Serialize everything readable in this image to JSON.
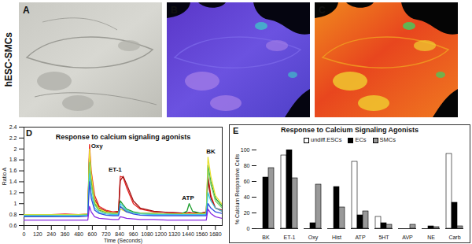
{
  "figure": {
    "row_label": "hESC-SMCs",
    "panels": [
      "A",
      "B",
      "C"
    ]
  },
  "chart_data": [
    {
      "panel": "D",
      "type": "line",
      "title": "Response to calcium signaling agonists",
      "x_label": "Time (Seconds)",
      "y_label": "Ratio A",
      "x": [
        0,
        120,
        240,
        360,
        480,
        560,
        575,
        590,
        620,
        660,
        720,
        780,
        830,
        845,
        870,
        900,
        960,
        1020,
        1140,
        1260,
        1380,
        1430,
        1450,
        1480,
        1560,
        1600,
        1615,
        1640,
        1680,
        1740
      ],
      "xlim": [
        0,
        1740
      ],
      "xticks": [
        0,
        120,
        240,
        360,
        480,
        600,
        720,
        840,
        960,
        1080,
        1200,
        1320,
        1440,
        1560,
        1680
      ],
      "ylim": [
        0.6,
        2.4
      ],
      "yticks": [
        0.6,
        0.8,
        1,
        1.2,
        1.4,
        1.6,
        1.8,
        2,
        2.2,
        2.4
      ],
      "grid": false,
      "series": [
        {
          "color": "#e8211f",
          "values": [
            0.8,
            0.8,
            0.8,
            0.81,
            0.8,
            0.81,
            2.08,
            1.6,
            1.15,
            0.95,
            0.88,
            0.85,
            0.86,
            1.5,
            1.48,
            1.3,
            1.0,
            0.9,
            0.85,
            0.84,
            0.83,
            0.83,
            0.84,
            0.83,
            0.83,
            0.85,
            1.5,
            1.15,
            0.92,
            0.86
          ]
        },
        {
          "color": "#a01010",
          "values": [
            0.78,
            0.78,
            0.78,
            0.79,
            0.78,
            0.79,
            1.92,
            1.5,
            1.08,
            0.92,
            0.86,
            0.83,
            0.85,
            1.42,
            1.5,
            1.36,
            1.05,
            0.92,
            0.86,
            0.84,
            0.83,
            0.83,
            0.83,
            0.83,
            0.83,
            0.84,
            1.45,
            1.1,
            0.92,
            0.88
          ]
        },
        {
          "color": "#1e9e2e",
          "values": [
            0.8,
            0.8,
            0.8,
            0.8,
            0.8,
            0.8,
            1.9,
            1.4,
            1.0,
            0.88,
            0.84,
            0.82,
            0.83,
            1.05,
            0.98,
            0.9,
            0.85,
            0.83,
            0.82,
            0.81,
            0.81,
            0.86,
            1.0,
            0.86,
            0.82,
            0.82,
            1.7,
            1.4,
            1.1,
            0.95
          ]
        },
        {
          "color": "#e8e030",
          "values": [
            0.8,
            0.8,
            0.8,
            0.8,
            0.8,
            0.81,
            2.0,
            1.55,
            1.05,
            0.9,
            0.85,
            0.83,
            0.83,
            0.9,
            0.88,
            0.85,
            0.83,
            0.82,
            0.82,
            0.81,
            0.81,
            0.81,
            0.81,
            0.81,
            0.81,
            0.82,
            1.85,
            1.5,
            1.15,
            0.98
          ]
        },
        {
          "color": "#7fd36a",
          "values": [
            0.79,
            0.79,
            0.79,
            0.79,
            0.79,
            0.8,
            1.75,
            1.35,
            0.98,
            0.87,
            0.83,
            0.82,
            0.82,
            0.95,
            0.92,
            0.87,
            0.84,
            0.82,
            0.81,
            0.81,
            0.8,
            0.8,
            0.8,
            0.8,
            0.8,
            0.81,
            1.65,
            1.35,
            1.05,
            0.92
          ]
        },
        {
          "color": "#3fc8e0",
          "values": [
            0.78,
            0.78,
            0.78,
            0.78,
            0.78,
            0.79,
            1.55,
            1.2,
            0.92,
            0.84,
            0.81,
            0.8,
            0.8,
            1.0,
            0.95,
            0.88,
            0.83,
            0.81,
            0.8,
            0.8,
            0.8,
            0.8,
            0.8,
            0.8,
            0.8,
            0.8,
            1.2,
            1.05,
            0.92,
            0.86
          ]
        },
        {
          "color": "#2f4fe0",
          "values": [
            0.76,
            0.76,
            0.76,
            0.76,
            0.76,
            0.77,
            1.4,
            1.1,
            0.88,
            0.82,
            0.79,
            0.78,
            0.78,
            0.95,
            0.9,
            0.85,
            0.81,
            0.79,
            0.78,
            0.78,
            0.78,
            0.78,
            0.78,
            0.78,
            0.78,
            0.78,
            1.0,
            0.92,
            0.85,
            0.82
          ]
        },
        {
          "color": "#8a2be2",
          "values": [
            0.7,
            0.7,
            0.7,
            0.7,
            0.7,
            0.7,
            0.95,
            0.85,
            0.76,
            0.73,
            0.72,
            0.71,
            0.71,
            0.76,
            0.75,
            0.73,
            0.72,
            0.71,
            0.71,
            0.7,
            0.7,
            0.7,
            0.7,
            0.7,
            0.7,
            0.7,
            0.9,
            0.82,
            0.76,
            0.73
          ]
        }
      ],
      "annotations": [
        {
          "text": "Oxy",
          "x": 640,
          "y": 2.05
        },
        {
          "text": "ET-1",
          "x": 800,
          "y": 1.62
        },
        {
          "text": "ATP",
          "x": 1440,
          "y": 1.1
        },
        {
          "text": "BK",
          "x": 1640,
          "y": 1.95
        }
      ]
    },
    {
      "panel": "E",
      "type": "bar",
      "title": "Response to Calcium Signaling Agonists",
      "y_label": "% Calcium Responsive Cells",
      "categories": [
        "BK",
        "ET-1",
        "Oxy",
        "Hist",
        "ATP",
        "5HT",
        "AVP",
        "NE",
        "Carb"
      ],
      "ylim": [
        0,
        100
      ],
      "yticks": [
        0,
        20,
        40,
        60,
        80,
        100
      ],
      "grid": false,
      "legend": "top",
      "series": [
        {
          "name": "undiff.ESCs",
          "color": "#ffffff",
          "values": [
            0,
            93,
            0,
            0,
            85,
            15,
            0,
            0,
            95
          ]
        },
        {
          "name": "ECs",
          "color": "#000000",
          "values": [
            65,
            100,
            7,
            53,
            17,
            7,
            0,
            3,
            33
          ]
        },
        {
          "name": "SMCs",
          "color": "#999999",
          "values": [
            77,
            64,
            56,
            27,
            22,
            5,
            5,
            2,
            3
          ]
        }
      ]
    }
  ]
}
